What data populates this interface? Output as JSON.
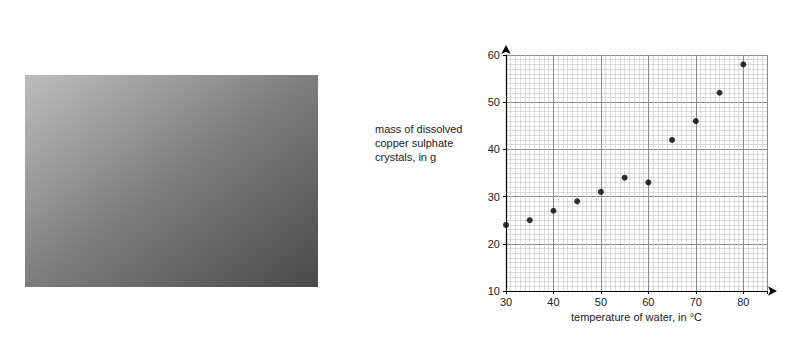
{
  "chart_data": {
    "type": "scatter",
    "xlabel": "temperature of water, in °C",
    "ylabel": "mass of dissolved\ncopper sulphate\ncrystals, in g",
    "x": [
      30,
      35,
      40,
      45,
      50,
      55,
      60,
      65,
      70,
      75,
      80
    ],
    "values": [
      24,
      25,
      27,
      29,
      31,
      34,
      33,
      42,
      46,
      52,
      58
    ],
    "color": "#000000",
    "marker": "circle",
    "xlim": [
      30,
      85
    ],
    "xticks": [
      30,
      40,
      50,
      60,
      70,
      80
    ],
    "ylim": [
      10,
      60
    ],
    "yticks": [
      10,
      20,
      30,
      40,
      50,
      60
    ],
    "grid": true
  }
}
